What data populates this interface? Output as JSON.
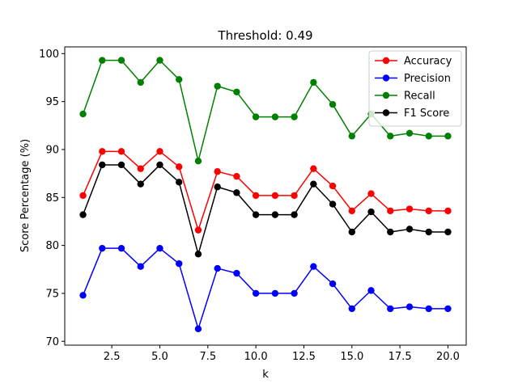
{
  "chart_data": {
    "type": "line",
    "title": "Threshold: 0.49",
    "xlabel": "k",
    "ylabel": "Score Percentage (%)",
    "xlim": [
      0.05,
      20.95
    ],
    "ylim": [
      69.6,
      100.7
    ],
    "xticks": [
      2.5,
      5.0,
      7.5,
      10.0,
      12.5,
      15.0,
      17.5,
      20.0
    ],
    "xtick_labels": [
      "2.5",
      "5.0",
      "7.5",
      "10.0",
      "12.5",
      "15.0",
      "17.5",
      "20.0"
    ],
    "yticks": [
      70,
      75,
      80,
      85,
      90,
      95,
      100
    ],
    "ytick_labels": [
      "70",
      "75",
      "80",
      "85",
      "90",
      "95",
      "100"
    ],
    "grid": false,
    "legend_position": "top-right",
    "x": [
      1,
      2,
      3,
      4,
      5,
      6,
      7,
      8,
      9,
      10,
      11,
      12,
      13,
      14,
      15,
      16,
      17,
      18,
      19,
      20
    ],
    "series": [
      {
        "name": "Accuracy",
        "color": "#ff0000",
        "values": [
          85.2,
          89.8,
          89.8,
          88.0,
          89.8,
          88.2,
          81.6,
          87.7,
          87.2,
          85.2,
          85.2,
          85.2,
          88.0,
          86.2,
          83.6,
          85.4,
          83.6,
          83.8,
          83.6,
          83.6
        ]
      },
      {
        "name": "Precision",
        "color": "#0000ff",
        "values": [
          74.8,
          79.7,
          79.7,
          77.8,
          79.7,
          78.1,
          71.3,
          77.6,
          77.1,
          75.0,
          75.0,
          75.0,
          77.8,
          76.0,
          73.4,
          75.3,
          73.4,
          73.6,
          73.4,
          73.4
        ]
      },
      {
        "name": "Recall",
        "color": "#008000",
        "values": [
          93.7,
          99.3,
          99.3,
          97.0,
          99.3,
          97.3,
          88.8,
          96.6,
          96.0,
          93.4,
          93.4,
          93.4,
          97.0,
          94.7,
          91.4,
          93.7,
          91.4,
          91.7,
          91.4,
          91.4
        ]
      },
      {
        "name": "F1 Score",
        "color": "#000000",
        "values": [
          83.2,
          88.4,
          88.4,
          86.4,
          88.4,
          86.6,
          79.1,
          86.1,
          85.5,
          83.2,
          83.2,
          83.2,
          86.4,
          84.3,
          81.4,
          83.5,
          81.4,
          81.7,
          81.4,
          81.4
        ]
      }
    ]
  }
}
